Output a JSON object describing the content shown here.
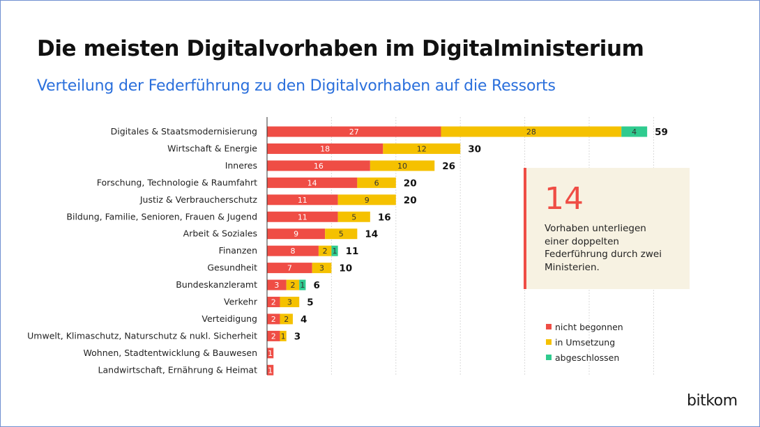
{
  "title": "Die meisten Digitalvorhaben im Digitalministerium",
  "subtitle": "Verteilung der Federführung zu den Digitalvorhaben auf die Ressorts",
  "colors": {
    "nicht_begonnen": "#ef4d45",
    "in_umsetzung": "#f5c100",
    "abgeschlossen": "#2fcb8f"
  },
  "chart_data": {
    "type": "bar",
    "orientation": "horizontal",
    "stacked": true,
    "categories": [
      "Digitales & Staatsmodernisierung",
      "Wirtschaft & Energie",
      "Inneres",
      "Forschung, Technologie & Raumfahrt",
      "Justiz & Verbraucherschutz",
      "Bildung, Familie, Senioren, Frauen & Jugend",
      "Arbeit & Soziales",
      "Finanzen",
      "Gesundheit",
      "Bundeskanzleramt",
      "Verkehr",
      "Verteidigung",
      "Umwelt, Klimaschutz, Naturschutz & nukl. Sicherheit",
      "Wohnen, Stadtentwicklung & Bauwesen",
      "Landwirtschaft, Ernährung & Heimat"
    ],
    "series": [
      {
        "name": "nicht begonnen",
        "values": [
          27,
          18,
          16,
          14,
          11,
          11,
          9,
          8,
          7,
          3,
          2,
          2,
          2,
          1,
          1
        ]
      },
      {
        "name": "in Umsetzung",
        "values": [
          28,
          12,
          10,
          6,
          9,
          5,
          5,
          2,
          3,
          2,
          3,
          2,
          1,
          0,
          0
        ]
      },
      {
        "name": "abgeschlossen",
        "values": [
          4,
          0,
          0,
          0,
          0,
          0,
          0,
          1,
          0,
          1,
          0,
          0,
          0,
          0,
          0
        ]
      }
    ],
    "totals": [
      59,
      30,
      26,
      20,
      20,
      16,
      14,
      11,
      10,
      6,
      5,
      4,
      3,
      null,
      null
    ],
    "xlim": [
      0,
      60
    ],
    "gridlines": [
      0,
      10,
      20,
      30,
      40,
      50,
      60
    ],
    "grid": true
  },
  "info": {
    "number": "14",
    "text": "Vorhaben unterliegen einer doppelten Federführung durch zwei Ministerien."
  },
  "legend": [
    {
      "label": "nicht begonnen",
      "series": 0
    },
    {
      "label": "in Umsetzung",
      "series": 1
    },
    {
      "label": "abgeschlossen",
      "series": 2
    }
  ],
  "logo": "bitkom"
}
